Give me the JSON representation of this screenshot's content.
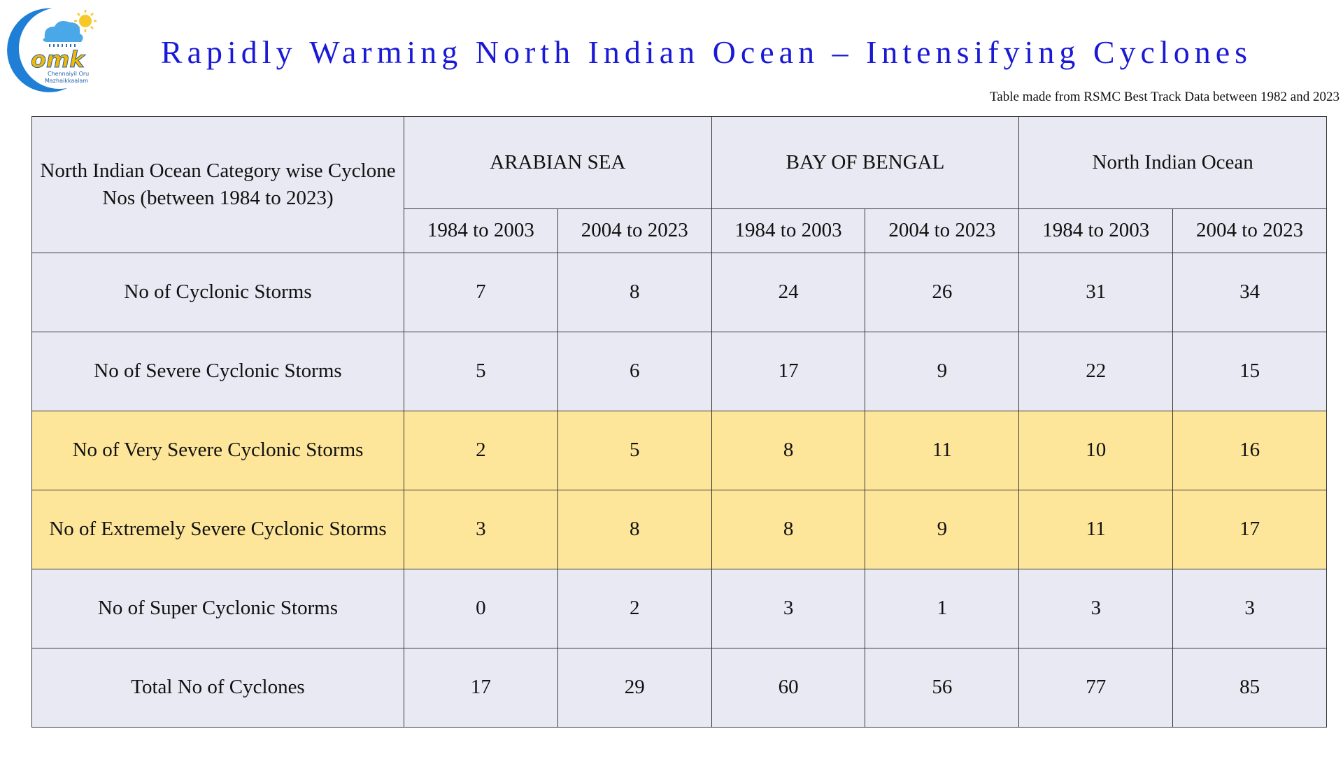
{
  "logo": {
    "letters": "omk",
    "tagline_line1": "Chennaiyil Oru",
    "tagline_line2": "Mazhaikkaalam"
  },
  "title": "Rapidly Warming North Indian Ocean – Intensifying Cyclones",
  "source_note": "Table made from RSMC Best Track Data between 1982 and 2023",
  "table": {
    "corner_header": "North Indian Ocean Category wise Cyclone Nos (between 1984 to 2023)",
    "region_headers": [
      "ARABIAN SEA",
      "BAY OF BENGAL",
      "North Indian Ocean"
    ],
    "period_headers": [
      "1984 to 2003",
      "2004 to 2023",
      "1984 to 2003",
      "2004 to 2023",
      "1984 to 2003",
      "2004 to 2023"
    ],
    "rows": [
      {
        "label": "No of Cyclonic Storms",
        "values": [
          "7",
          "8",
          "24",
          "26",
          "31",
          "34"
        ]
      },
      {
        "label": "No of Severe Cyclonic Storms",
        "values": [
          "5",
          "6",
          "17",
          "9",
          "22",
          "15"
        ]
      },
      {
        "label": "No of Very Severe Cyclonic Storms",
        "values": [
          "2",
          "5",
          "8",
          "11",
          "10",
          "16"
        ]
      },
      {
        "label": "No of Extremely Severe Cyclonic Storms",
        "values": [
          "3",
          "8",
          "8",
          "9",
          "11",
          "17"
        ]
      },
      {
        "label": "No of Super Cyclonic Storms",
        "values": [
          "0",
          "2",
          "3",
          "1",
          "3",
          "3"
        ]
      },
      {
        "label": "Total No of Cyclones",
        "values": [
          "17",
          "29",
          "60",
          "56",
          "77",
          "85"
        ]
      }
    ]
  },
  "colors": {
    "title": "#1a1ad6",
    "cell_background": "#e9e9f3",
    "highlight_background": "#fde69a",
    "logo_crescent": "#1f7fd6",
    "logo_letters": "#f5b800"
  }
}
